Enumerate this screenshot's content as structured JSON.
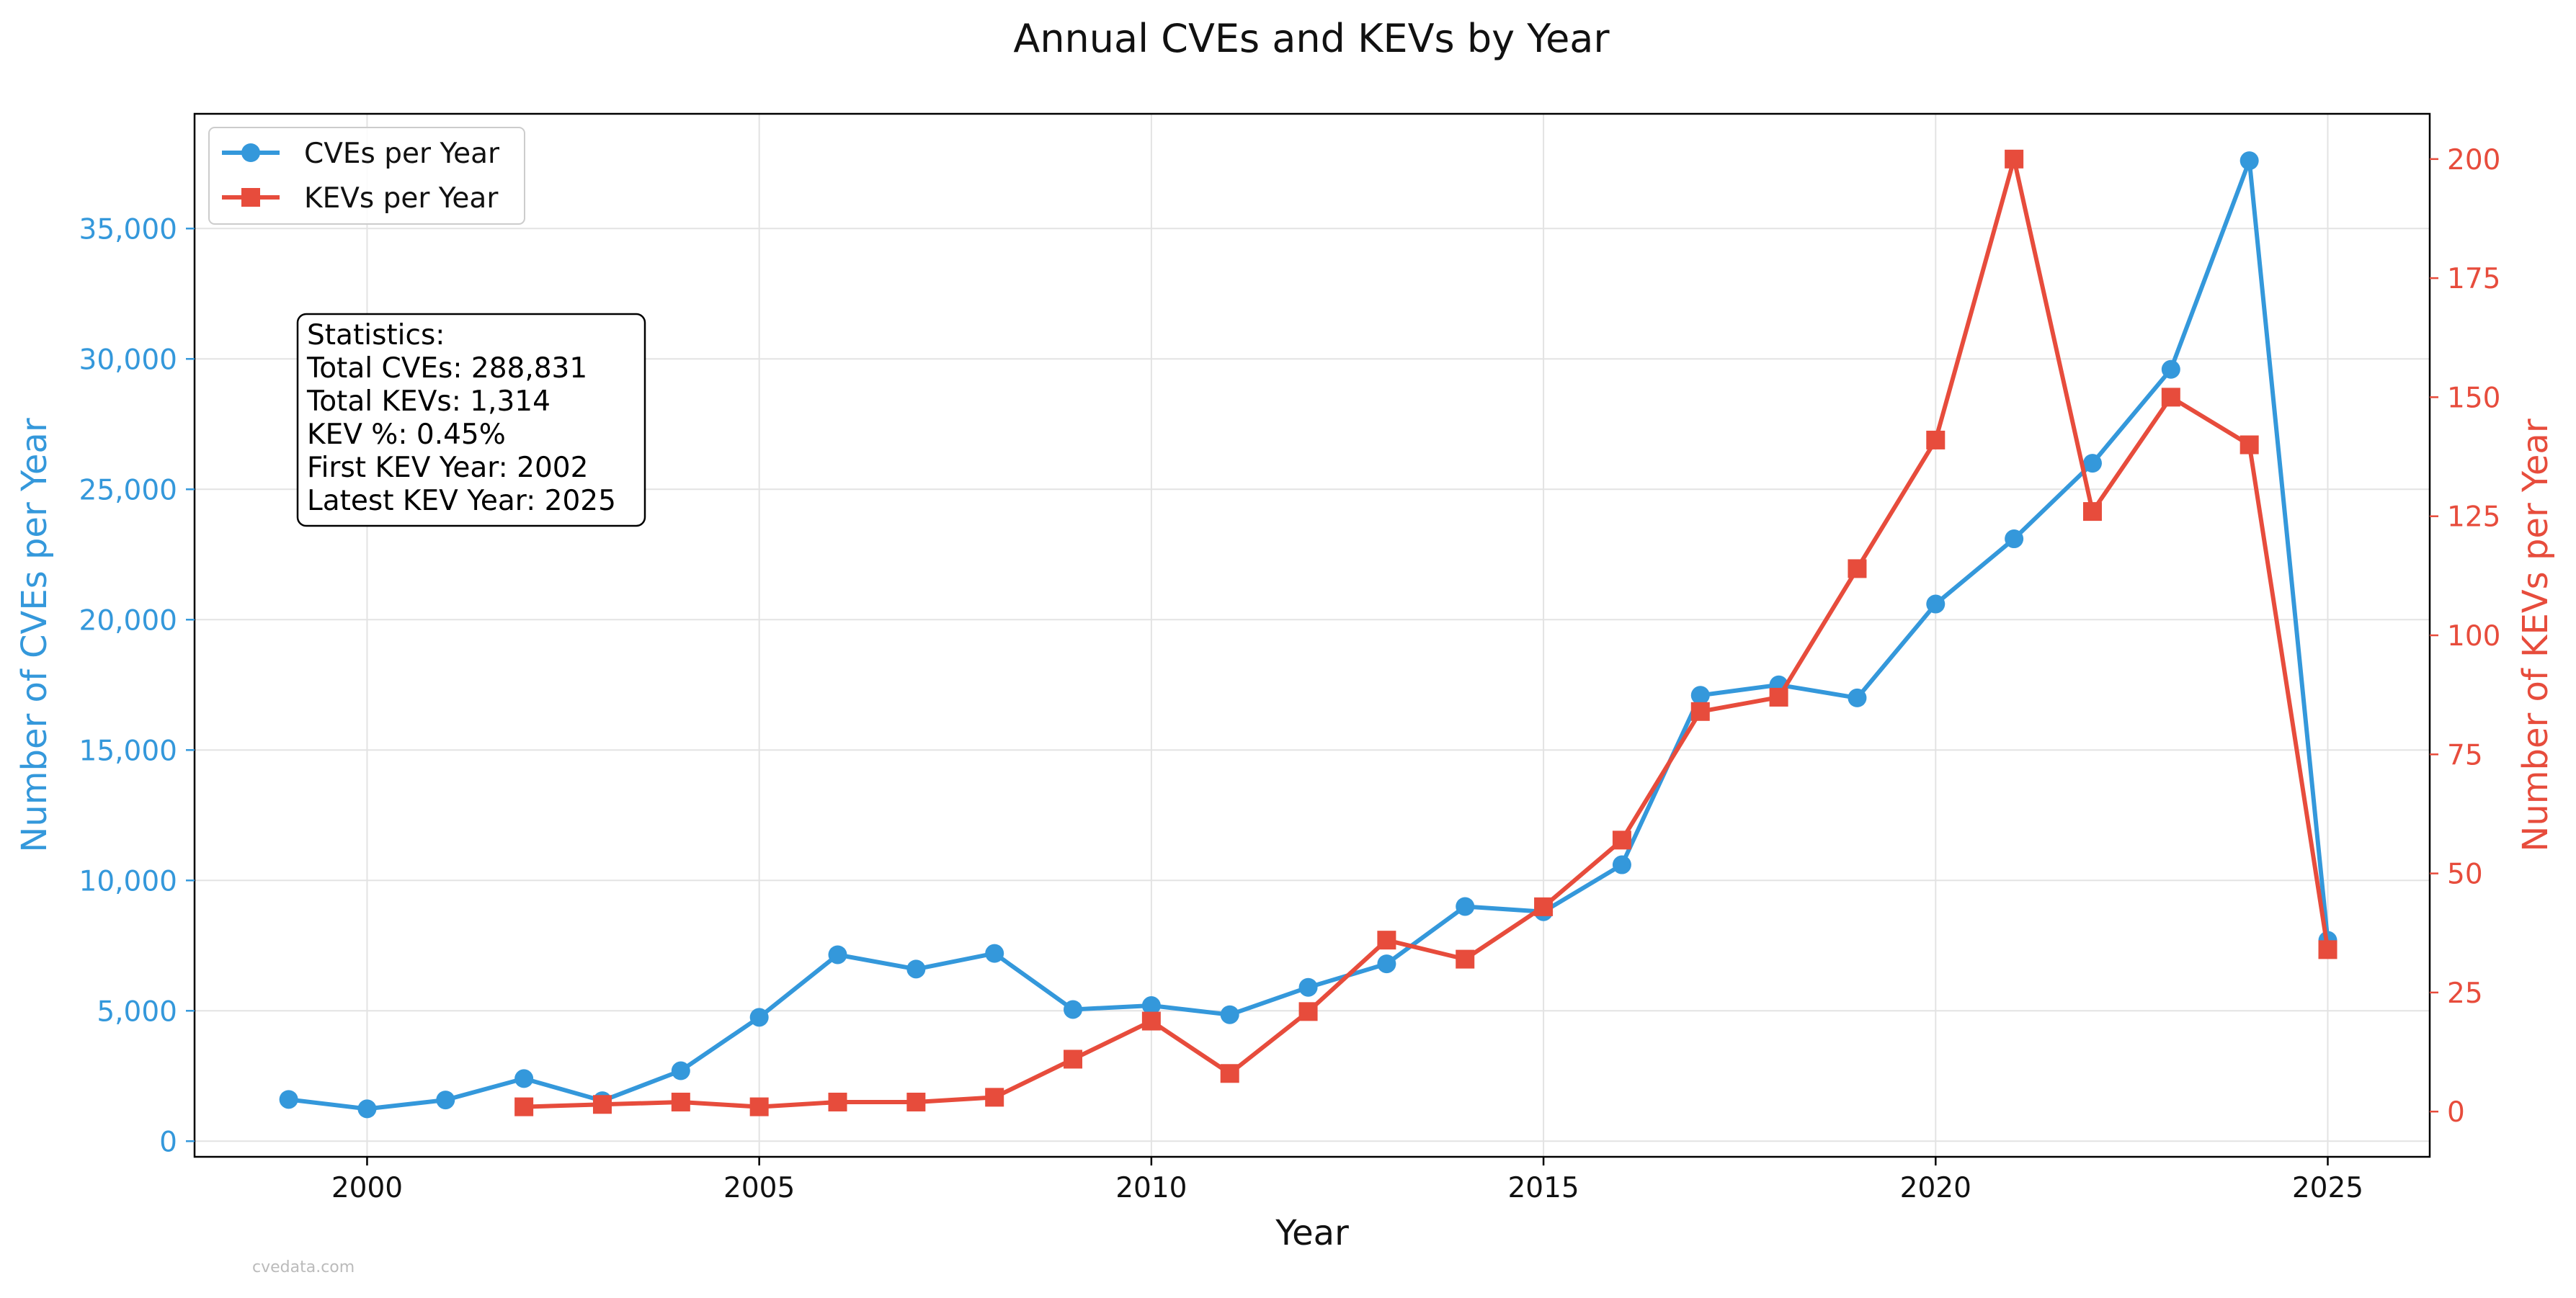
{
  "chart_data": {
    "type": "line",
    "title": "Annual CVEs and KEVs by Year",
    "xlabel": "Year",
    "ylabel_left": "Number of CVEs per Year",
    "ylabel_right": "Number of KEVs per Year",
    "xlim": [
      1997.8,
      2026.3
    ],
    "ylim_left": [
      -600,
      39400
    ],
    "ylim_right": [
      -9.5,
      209.5
    ],
    "x_ticks": [
      2000,
      2005,
      2010,
      2015,
      2020,
      2025
    ],
    "y_left_ticks": [
      0,
      5000,
      10000,
      15000,
      20000,
      25000,
      30000,
      35000
    ],
    "y_left_tick_labels": [
      "0",
      "5,000",
      "10,000",
      "15,000",
      "20,000",
      "25,000",
      "30,000",
      "35,000"
    ],
    "y_right_ticks": [
      0,
      25,
      50,
      75,
      100,
      125,
      150,
      175,
      200
    ],
    "grid": true,
    "legend_position": "top-left",
    "series": [
      {
        "name": "CVEs per Year",
        "axis": "left",
        "color": "#3498db",
        "marker": "circle",
        "x": [
          1999,
          2000,
          2001,
          2002,
          2003,
          2004,
          2005,
          2006,
          2007,
          2008,
          2009,
          2010,
          2011,
          2012,
          2013,
          2014,
          2015,
          2016,
          2017,
          2018,
          2019,
          2020,
          2021,
          2022,
          2023,
          2024,
          2025
        ],
        "values": [
          1600,
          1240,
          1580,
          2400,
          1550,
          2700,
          4750,
          7150,
          6600,
          7200,
          5050,
          5200,
          4850,
          5900,
          6800,
          9000,
          8800,
          10600,
          17100,
          17500,
          17000,
          20600,
          23100,
          26000,
          29600,
          37600,
          7700
        ]
      },
      {
        "name": "KEVs per Year",
        "axis": "right",
        "color": "#e74c3c",
        "marker": "square",
        "x": [
          2002,
          2003,
          2004,
          2005,
          2006,
          2007,
          2008,
          2009,
          2010,
          2011,
          2012,
          2013,
          2014,
          2015,
          2016,
          2017,
          2018,
          2019,
          2020,
          2021,
          2022,
          2023,
          2024,
          2025
        ],
        "values": [
          1,
          1.5,
          2,
          1,
          2,
          2,
          3,
          11,
          19,
          8,
          21,
          36,
          32,
          43,
          57,
          84,
          87,
          114,
          141,
          200,
          126,
          150,
          140,
          34
        ]
      }
    ],
    "annotation": {
      "lines": [
        "Statistics:",
        "Total CVEs: 288,831",
        "Total KEVs: 1,314",
        "KEV %: 0.45%",
        "First KEV Year: 2002",
        "Latest KEV Year: 2025"
      ]
    },
    "watermark": "cvedata.com"
  }
}
